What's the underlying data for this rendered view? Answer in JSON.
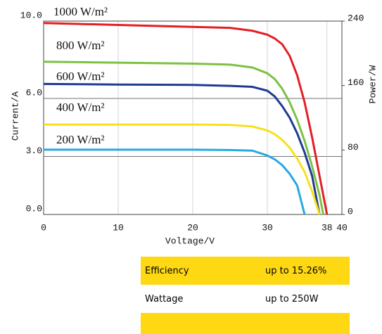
{
  "chart_data": {
    "type": "line",
    "x_label": "Voltage/V",
    "y_label": "Current/A",
    "y2_label": "Power/W",
    "x": [
      0,
      10,
      20,
      25,
      28,
      30,
      31,
      32,
      33,
      34,
      35,
      36,
      37,
      37.5,
      38
    ],
    "series": [
      {
        "name": "1000 W/m²",
        "color": "#e31e24",
        "values": [
          9.9,
          9.8,
          9.7,
          9.65,
          9.5,
          9.3,
          9.1,
          8.8,
          8.2,
          7.2,
          5.8,
          4.0,
          2.0,
          1.0,
          0
        ]
      },
      {
        "name": "800 W/m²",
        "color": "#7dc142",
        "values": [
          7.9,
          7.85,
          7.8,
          7.75,
          7.6,
          7.3,
          7.0,
          6.5,
          5.8,
          4.9,
          3.8,
          2.5,
          1.0,
          0,
          null
        ]
      },
      {
        "name": "600 W/m²",
        "color": "#1f3a93",
        "values": [
          6.75,
          6.72,
          6.7,
          6.65,
          6.6,
          6.4,
          6.1,
          5.6,
          5.0,
          4.2,
          3.2,
          2.0,
          0,
          null,
          null
        ]
      },
      {
        "name": "400 W/m²",
        "color": "#f7e11b",
        "values": [
          4.65,
          4.65,
          4.65,
          4.63,
          4.55,
          4.35,
          4.15,
          3.85,
          3.45,
          2.9,
          2.2,
          1.2,
          0,
          null,
          null
        ]
      },
      {
        "name": "200 W/m²",
        "color": "#27a9e1",
        "values": [
          3.35,
          3.35,
          3.35,
          3.33,
          3.3,
          3.05,
          2.85,
          2.55,
          2.1,
          1.5,
          0,
          null,
          null,
          null,
          null
        ]
      }
    ],
    "xlim": [
      0,
      40
    ],
    "xticks": [
      0,
      10,
      20,
      30,
      38,
      40
    ],
    "ylim": [
      0,
      10
    ],
    "yticks": [
      {
        "value": 0,
        "label": "0.0"
      },
      {
        "value": 3,
        "label": "3.0"
      },
      {
        "value": 6,
        "label": "6.0"
      },
      {
        "value": 10,
        "label": "10.0"
      }
    ],
    "y2lim": [
      0,
      240
    ],
    "y2ticks": [
      0,
      80,
      160,
      240
    ],
    "grid": true
  },
  "table": {
    "rows": [
      [
        "Efficiency",
        "up to 15.26%"
      ],
      [
        "Wattage",
        "up to 250W"
      ]
    ]
  }
}
